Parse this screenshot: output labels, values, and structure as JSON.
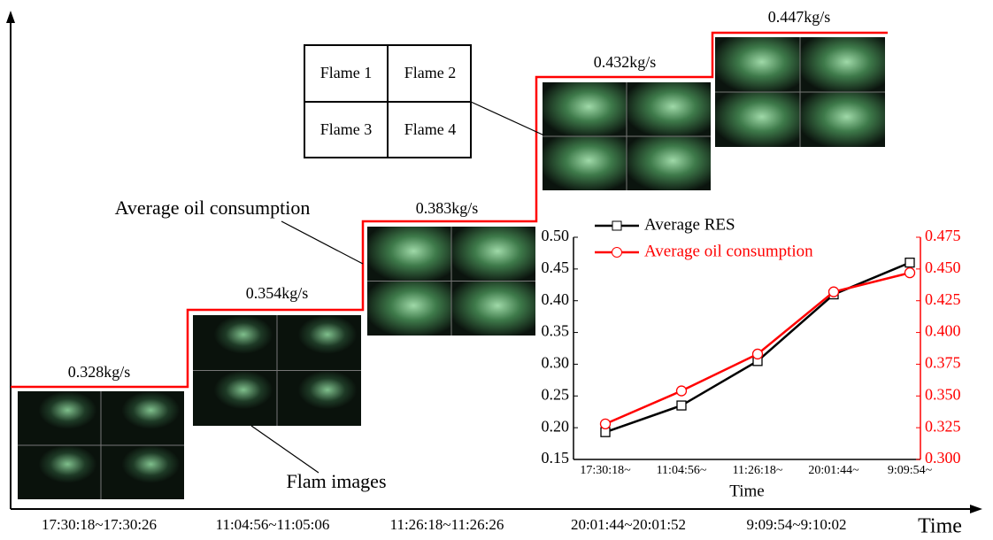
{
  "axis_label": "Time",
  "steps": [
    {
      "label": "0.328kg/s",
      "time": "17:30:18~17:30:26"
    },
    {
      "label": "0.354kg/s",
      "time": "11:04:56~11:05:06"
    },
    {
      "label": "0.383kg/s",
      "time": "11:26:18~11:26:26"
    },
    {
      "label": "0.432kg/s",
      "time": "20:01:44~20:01:52"
    },
    {
      "label": "0.447kg/s",
      "time": "9:09:54~9:10:02"
    }
  ],
  "legend_box": [
    "Flame 1",
    "Flame 2",
    "Flame 3",
    "Flame 4"
  ],
  "annotations": {
    "oil": "Average oil consumption",
    "images": "Flam images"
  },
  "chart_data": {
    "type": "line",
    "xlabel": "Time",
    "categories": [
      "17:30:18~",
      "11:04:56~",
      "11:26:18~",
      "20:01:44~",
      "9:09:54~"
    ],
    "ylim": [
      0.15,
      0.5
    ],
    "yticks": [
      {
        "value": 0.15,
        "label": "0.15"
      },
      {
        "value": 0.2,
        "label": "0.20"
      },
      0.25,
      {
        "value": 0.3,
        "label": "0.30"
      },
      0.35,
      {
        "value": 0.4,
        "label": "0.40"
      },
      0.45,
      {
        "value": 0.5,
        "label": "0.50"
      }
    ],
    "y2lim": [
      0.3,
      0.475
    ],
    "y2ticks": [
      {
        "value": 0.3,
        "label": "0.300"
      },
      0.325,
      {
        "value": 0.35,
        "label": "0.350"
      },
      0.375,
      {
        "value": 0.4,
        "label": "0.400"
      },
      0.425,
      {
        "value": 0.45,
        "label": "0.450"
      },
      0.475
    ],
    "y2color": "#ff0000",
    "series": [
      {
        "name": "Average RES",
        "color": "#000000",
        "marker": "square",
        "values": [
          0.193,
          0.235,
          0.305,
          0.41,
          0.46
        ]
      },
      {
        "name": "Average oil consumption",
        "color": "#ff0000",
        "marker": "circle",
        "axis": "y2",
        "values": [
          0.328,
          0.354,
          0.383,
          0.432,
          0.447
        ]
      }
    ]
  }
}
